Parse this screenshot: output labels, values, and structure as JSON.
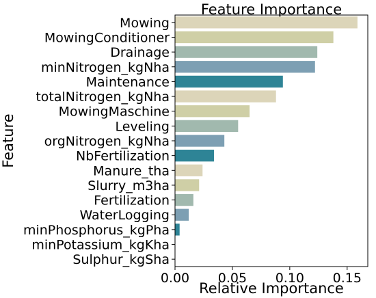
{
  "chart_data": {
    "type": "bar",
    "orientation": "horizontal",
    "title": "Feature Importance",
    "xlabel": "Relative Importance",
    "ylabel": "Feature",
    "categories": [
      "Mowing",
      "MowingConditioner",
      "Drainage",
      "minNitrogen_kgNha",
      "Maintenance",
      "totalNitrogen_kgNha",
      "MowingMaschine",
      "Leveling",
      "orgNitrogen_kgNha",
      "NbFertilization",
      "Manure_tha",
      "Slurry_m3ha",
      "Fertilization",
      "WaterLogging",
      "minPhosphorus_kgPha",
      "minPotassium_kgKha",
      "Sulphur_kgSha"
    ],
    "values": [
      0.159,
      0.138,
      0.124,
      0.122,
      0.094,
      0.088,
      0.065,
      0.055,
      0.043,
      0.034,
      0.024,
      0.021,
      0.016,
      0.012,
      0.004,
      0.0,
      0.0
    ],
    "colors": [
      "#dcd5b9",
      "#cfcfa6",
      "#a1b9ae",
      "#7d9fb3",
      "#2e8496"
    ],
    "xlim": [
      0,
      0.168
    ],
    "xticks": [
      0.0,
      0.05,
      0.1,
      0.15
    ],
    "xtick_labels": [
      "0.00",
      "0.05",
      "0.10",
      "0.15"
    ],
    "grid": false
  }
}
